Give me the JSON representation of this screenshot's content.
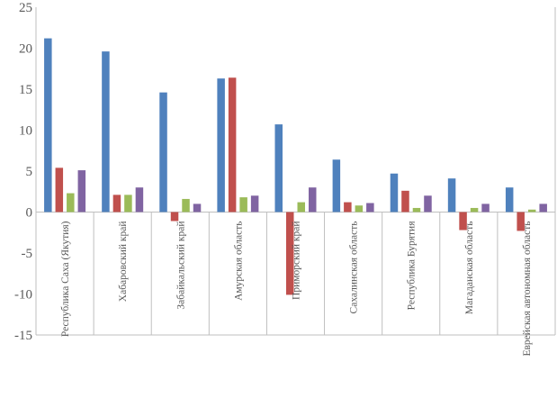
{
  "chart_data": {
    "type": "bar",
    "title": "",
    "xlabel": "",
    "ylabel": "",
    "ylim": [
      -15,
      25
    ],
    "y_ticks": [
      "25",
      "20",
      "15",
      "10",
      "5",
      "0",
      "-5",
      "-10",
      "-15"
    ],
    "grid": "category separators only",
    "legend": "none",
    "colors": [
      "#4F81BD",
      "#C0504D",
      "#9BBB59",
      "#8064A2"
    ],
    "categories": [
      "Республика Саха (Якутия)",
      "Хабаровский край",
      "Забайкальский край",
      "Амурская область",
      "Приморский край",
      "Сахалинская область",
      "Республика Бурятия",
      "Магаданская область",
      "Еврейская автономная область"
    ],
    "series": [
      {
        "values": [
          21.2,
          19.6,
          14.6,
          16.3,
          10.7,
          6.4,
          4.7,
          4.1,
          3.0
        ]
      },
      {
        "values": [
          5.4,
          2.1,
          -1.1,
          16.4,
          -10.1,
          1.2,
          2.6,
          -2.2,
          -2.3
        ]
      },
      {
        "values": [
          2.3,
          2.1,
          1.6,
          1.8,
          1.2,
          0.8,
          0.5,
          0.5,
          0.3
        ]
      },
      {
        "values": [
          5.1,
          3.0,
          1.0,
          2.0,
          3.0,
          1.1,
          2.0,
          1.0,
          1.0
        ]
      }
    ]
  }
}
